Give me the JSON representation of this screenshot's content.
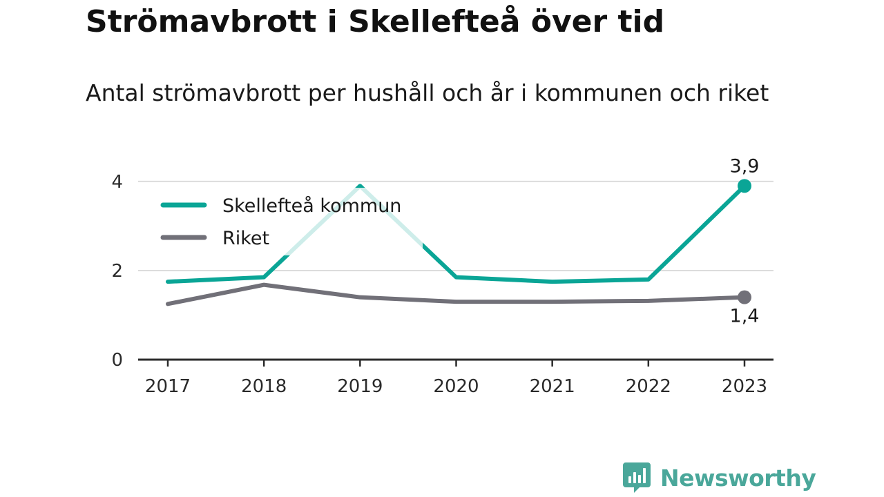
{
  "title": "Strömavbrott i Skellefteå över tid",
  "subtitle": "Antal strömavbrott per hushåll och år i kommunen och riket",
  "brand": {
    "name": "Newsworthy",
    "icon": "newsworthy-logo-icon",
    "color": "#4aa79a"
  },
  "chart_data": {
    "type": "line",
    "x": [
      "2017",
      "2018",
      "2019",
      "2020",
      "2021",
      "2022",
      "2023"
    ],
    "yticks": [
      "0",
      "2",
      "4"
    ],
    "ylim": [
      0,
      4.2
    ],
    "grid": true,
    "legend": "top-left",
    "series": [
      {
        "name": "Skellefteå kommun",
        "color": "#0aa596",
        "values": [
          1.75,
          1.85,
          3.9,
          1.85,
          1.75,
          1.8,
          3.9
        ],
        "end_label": "3,9"
      },
      {
        "name": "Riket",
        "color": "#717078",
        "values": [
          1.25,
          1.68,
          1.4,
          1.3,
          1.3,
          1.32,
          1.4
        ],
        "end_label": "1,4"
      }
    ]
  }
}
